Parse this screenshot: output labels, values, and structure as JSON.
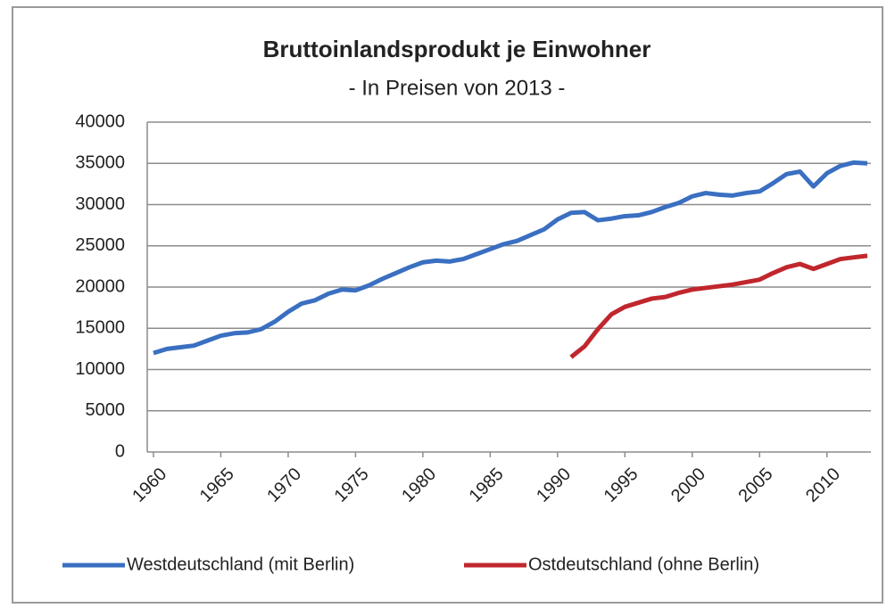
{
  "chart_data": {
    "type": "line",
    "title": "Bruttoinlandsprodukt je Einwohner",
    "subtitle": "- In Preisen von 2013 -",
    "x": [
      1960,
      1961,
      1962,
      1963,
      1964,
      1965,
      1966,
      1967,
      1968,
      1969,
      1970,
      1971,
      1972,
      1973,
      1974,
      1975,
      1976,
      1977,
      1978,
      1979,
      1980,
      1981,
      1982,
      1983,
      1984,
      1985,
      1986,
      1987,
      1988,
      1989,
      1990,
      1991,
      1992,
      1993,
      1994,
      1995,
      1996,
      1997,
      1998,
      1999,
      2000,
      2001,
      2002,
      2003,
      2004,
      2005,
      2006,
      2007,
      2008,
      2009,
      2010,
      2011,
      2012,
      2013
    ],
    "series": [
      {
        "name": "Westdeutschland (mit Berlin)",
        "color": "#3a6fc1",
        "values": [
          12000,
          12500,
          12700,
          12900,
          13500,
          14100,
          14400,
          14500,
          14900,
          15800,
          17000,
          18000,
          18400,
          19200,
          19700,
          19600,
          20200,
          21000,
          21700,
          22400,
          23000,
          23200,
          23100,
          23400,
          24000,
          24600,
          25200,
          25600,
          26300,
          27000,
          28200,
          29000,
          29100,
          28100,
          28300,
          28600,
          28700,
          29100,
          29700,
          30200,
          31000,
          31400,
          31200,
          31100,
          31400,
          31600,
          32600,
          33700,
          34000,
          32200,
          33800,
          34700,
          35100,
          35000
        ]
      },
      {
        "name": "Ostdeutschland (ohne Berlin)",
        "color": "#c0272d",
        "values": [
          null,
          null,
          null,
          null,
          null,
          null,
          null,
          null,
          null,
          null,
          null,
          null,
          null,
          null,
          null,
          null,
          null,
          null,
          null,
          null,
          null,
          null,
          null,
          null,
          null,
          null,
          null,
          null,
          null,
          null,
          null,
          11500,
          12800,
          14900,
          16700,
          17600,
          18100,
          18600,
          18800,
          19300,
          19700,
          19900,
          20100,
          20300,
          20600,
          20900,
          21700,
          22400,
          22800,
          22200,
          22800,
          23400,
          23600,
          23800
        ]
      }
    ],
    "xlim": [
      1960,
      2013
    ],
    "xticks": [
      1960,
      1965,
      1970,
      1975,
      1980,
      1985,
      1990,
      1995,
      2000,
      2005,
      2010
    ],
    "ylim": [
      0,
      40000
    ],
    "yticks": [
      0,
      5000,
      10000,
      15000,
      20000,
      25000,
      30000,
      35000,
      40000
    ],
    "grid": true,
    "legend": "bottom"
  }
}
